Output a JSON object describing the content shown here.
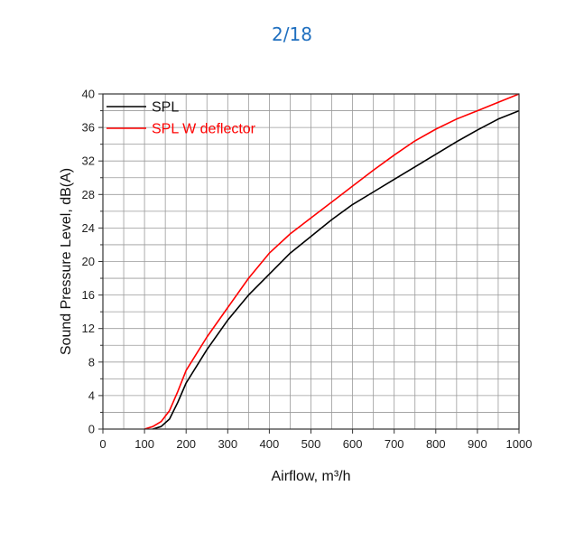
{
  "header": {
    "page_counter": "2/18"
  },
  "colors": {
    "accent": "#1f6fbf",
    "spl": "#000000",
    "spl_deflector": "#ff0000",
    "grid": "#9a9a9a"
  },
  "chart_data": {
    "type": "line",
    "title": "",
    "xlabel": "Airflow, m³/h",
    "ylabel": "Sound Pressure Level, dB(A)",
    "xlim": [
      0,
      1000
    ],
    "ylim": [
      0,
      40
    ],
    "x_ticks": [
      0,
      100,
      200,
      300,
      400,
      500,
      600,
      700,
      800,
      900,
      1000
    ],
    "y_ticks": [
      0,
      4,
      8,
      12,
      16,
      20,
      24,
      28,
      32,
      36,
      40
    ],
    "grid": true,
    "legend_position": "top-left",
    "series": [
      {
        "name": "SPL",
        "color": "#000000",
        "x": [
          120,
          140,
          160,
          180,
          200,
          250,
          300,
          350,
          400,
          450,
          500,
          550,
          600,
          650,
          700,
          750,
          800,
          850,
          900,
          950,
          1000
        ],
        "y": [
          0,
          0.3,
          1.2,
          3.2,
          5.5,
          9.5,
          13,
          16,
          18.5,
          21,
          23,
          25,
          26.8,
          28.3,
          29.8,
          31.3,
          32.8,
          34.3,
          35.7,
          37,
          38
        ]
      },
      {
        "name": "SPL W deflector",
        "color": "#ff0000",
        "x": [
          100,
          120,
          140,
          160,
          180,
          200,
          250,
          300,
          350,
          400,
          450,
          500,
          550,
          600,
          650,
          700,
          750,
          800,
          850,
          900,
          950,
          1000
        ],
        "y": [
          0,
          0.3,
          0.9,
          2.2,
          4.5,
          7,
          11,
          14.5,
          18,
          21,
          23.3,
          25.2,
          27.1,
          29,
          30.9,
          32.7,
          34.4,
          35.8,
          37,
          38,
          39,
          40
        ]
      }
    ]
  }
}
